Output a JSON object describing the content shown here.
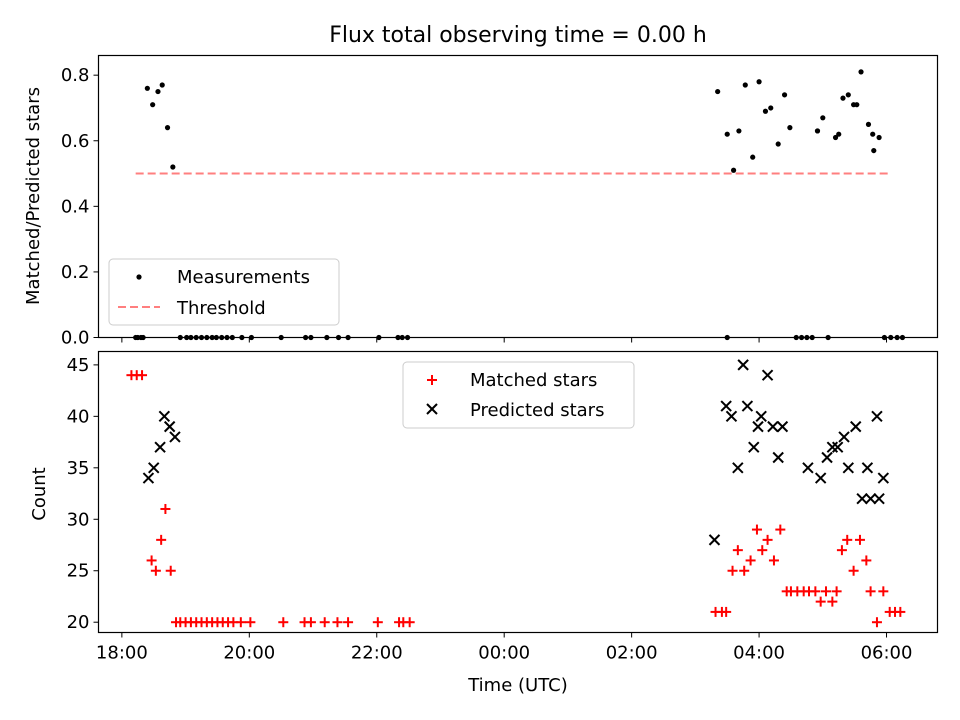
{
  "chart_data": [
    {
      "type": "scatter",
      "title": "Flux total observing time = 0.00 h",
      "ylabel": "Matched/Predicted stars",
      "xlabel": "",
      "xlim": [
        "2000-01-01T17:38",
        "2000-01-02T06:48"
      ],
      "ylim": [
        0,
        0.86
      ],
      "x_ticks": [
        "18:00",
        "20:00",
        "22:00",
        "00:00",
        "02:00",
        "04:00",
        "06:00"
      ],
      "y_ticks": [
        "0.0",
        "0.2",
        "0.4",
        "0.6",
        "0.8"
      ],
      "legend": {
        "position": "lower-left",
        "entries": [
          "Measurements",
          "Threshold"
        ]
      },
      "colors": {
        "Measurements": "#000000",
        "Threshold": "#ff7f7f"
      },
      "series": [
        {
          "name": "Measurements",
          "x": [
            "18:13",
            "18:15",
            "18:18",
            "18:20",
            "18:24",
            "18:29",
            "18:34",
            "18:38",
            "18:43",
            "18:48",
            "18:55",
            "19:01",
            "19:05",
            "19:10",
            "19:15",
            "19:20",
            "19:25",
            "19:29",
            "19:34",
            "19:39",
            "19:44",
            "19:53",
            "20:02",
            "20:30",
            "20:53",
            "20:58",
            "21:13",
            "21:24",
            "21:33",
            "22:02",
            "22:20",
            "22:24",
            "22:29",
            "03:21",
            "03:30",
            "03:36",
            "03:47",
            "03:54",
            "04:00",
            "04:06",
            "04:11",
            "04:18",
            "04:24",
            "04:29",
            "04:35",
            "04:40",
            "04:45",
            "04:50",
            "04:55",
            "05:05",
            "05:12",
            "05:19",
            "05:24",
            "05:29",
            "05:36",
            "05:43",
            "05:48",
            "05:53",
            "05:58",
            "06:04",
            "06:10",
            "06:15"
          ],
          "y": [
            0,
            0,
            0,
            0,
            0.76,
            0.71,
            0.75,
            0.77,
            0.64,
            0.52,
            0,
            0,
            0,
            0,
            0,
            0,
            0,
            0,
            0,
            0,
            0,
            0,
            0,
            0,
            0,
            0,
            0,
            0,
            0,
            0,
            0,
            0,
            0,
            0.75,
            0,
            0.51,
            0.77,
            0.55,
            0.78,
            0.69,
            0.7,
            0.59,
            0.74,
            0.64,
            0,
            0,
            0,
            0,
            0.63,
            0,
            0.61,
            0.73,
            0.74,
            0.71,
            0.81,
            0.65,
            0.57,
            0.61,
            0,
            0,
            0,
            0
          ],
          "extra_points": [
            {
              "x": "03:30",
              "y": 0.62
            },
            {
              "x": "03:41",
              "y": 0.63
            },
            {
              "x": "04:55",
              "y": 0.63
            },
            {
              "x": "05:00",
              "y": 0.67
            },
            {
              "x": "05:15",
              "y": 0.62
            },
            {
              "x": "05:32",
              "y": 0.71
            },
            {
              "x": "05:47",
              "y": 0.62
            }
          ]
        },
        {
          "name": "Threshold",
          "x": [
            "18:13",
            "06:04"
          ],
          "y": [
            0.5,
            0.5
          ]
        }
      ]
    },
    {
      "type": "scatter",
      "title": "",
      "ylabel": "Count",
      "xlabel": "Time (UTC)",
      "xlim": [
        "2000-01-01T17:38",
        "2000-01-02T06:48"
      ],
      "ylim": [
        19,
        46.3
      ],
      "x_ticks": [
        "18:00",
        "20:00",
        "22:00",
        "00:00",
        "02:00",
        "04:00",
        "06:00"
      ],
      "y_ticks": [
        "20",
        "25",
        "30",
        "35",
        "40",
        "45"
      ],
      "legend": {
        "position": "upper-center",
        "entries": [
          "Matched stars",
          "Predicted stars"
        ]
      },
      "colors": {
        "Matched stars": "#ff0000",
        "Predicted stars": "#000000"
      },
      "series": [
        {
          "name": "Matched stars",
          "x": [
            "18:09",
            "18:14",
            "18:19",
            "18:28",
            "18:32",
            "18:37",
            "18:41",
            "18:46",
            "18:51",
            "18:55",
            "19:00",
            "19:05",
            "19:10",
            "19:15",
            "19:20",
            "19:25",
            "19:30",
            "19:35",
            "19:40",
            "19:45",
            "19:52",
            "20:01",
            "20:32",
            "20:52",
            "20:58",
            "21:11",
            "21:23",
            "21:33",
            "22:01",
            "22:21",
            "22:25",
            "22:31",
            "03:19",
            "03:25",
            "03:29",
            "03:35",
            "03:40",
            "03:46",
            "03:52",
            "03:58",
            "04:03",
            "04:08",
            "04:14",
            "04:20",
            "04:26",
            "04:30",
            "04:36",
            "04:42",
            "04:47",
            "04:53",
            "04:58",
            "05:03",
            "05:09",
            "05:13",
            "05:18",
            "05:23",
            "05:29",
            "05:35",
            "05:41",
            "05:45",
            "05:51",
            "05:57",
            "06:03",
            "06:08",
            "06:13"
          ],
          "y": [
            44,
            44,
            44,
            26,
            25,
            28,
            31,
            25,
            20,
            20,
            20,
            20,
            20,
            20,
            20,
            20,
            20,
            20,
            20,
            20,
            20,
            20,
            20,
            20,
            20,
            20,
            20,
            20,
            20,
            20,
            20,
            20,
            21,
            21,
            21,
            25,
            27,
            25,
            26,
            29,
            27,
            28,
            26,
            29,
            23,
            23,
            23,
            23,
            23,
            23,
            22,
            23,
            22,
            23,
            27,
            28,
            25,
            28,
            26,
            23,
            20,
            23,
            21,
            21,
            21
          ]
        },
        {
          "name": "Predicted stars",
          "x": [
            "18:25",
            "18:30",
            "18:36",
            "18:40",
            "18:45",
            "18:50",
            "03:18",
            "03:29",
            "03:34",
            "03:40",
            "03:45",
            "03:49",
            "03:55",
            "03:59",
            "04:02",
            "04:08",
            "04:13",
            "04:18",
            "04:22",
            "04:46",
            "04:58",
            "05:04",
            "05:09",
            "05:14",
            "05:20",
            "05:24",
            "05:31",
            "05:37",
            "05:42",
            "05:45",
            "05:51",
            "05:53",
            "05:57"
          ],
          "y": [
            34,
            35,
            37,
            40,
            39,
            38,
            28,
            41,
            40,
            35,
            45,
            41,
            37,
            39,
            40,
            44,
            39,
            36,
            39,
            35,
            34,
            36,
            37,
            37,
            38,
            35,
            39,
            32,
            35,
            32,
            40,
            32,
            34
          ]
        }
      ]
    }
  ]
}
